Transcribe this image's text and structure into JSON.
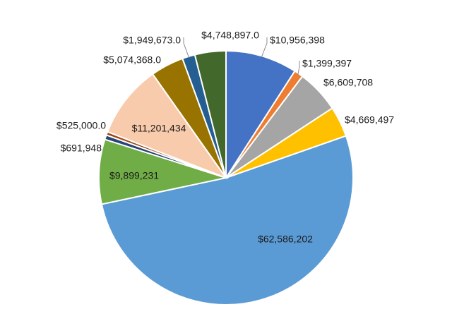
{
  "chart_data": {
    "type": "pie",
    "title": "",
    "slices": [
      {
        "label": "$10,956,398",
        "value": 10956398,
        "color": "#4472C4"
      },
      {
        "label": "$1,399,397",
        "value": 1399397,
        "color": "#ED7D31"
      },
      {
        "label": "$6,609,708",
        "value": 6609708,
        "color": "#A5A5A5"
      },
      {
        "label": "$4,669,497",
        "value": 4669497,
        "color": "#FFC000"
      },
      {
        "label": "$62,586,202",
        "value": 62586202,
        "color": "#5B9BD5"
      },
      {
        "label": "$9,899,231",
        "value": 9899231,
        "color": "#70AD47"
      },
      {
        "label": "$691,948",
        "value": 691948,
        "color": "#264478"
      },
      {
        "label": "$525,000.0",
        "value": 525000,
        "color": "#9E480E"
      },
      {
        "label": "$11,201,434",
        "value": 11201434,
        "color": "#F8CBAD"
      },
      {
        "label": "$5,074,368.0",
        "value": 5074368,
        "color": "#997300"
      },
      {
        "label": "$1,949,673.0",
        "value": 1949673,
        "color": "#255E91"
      },
      {
        "label": "$4,748,897.0",
        "value": 4748897,
        "color": "#43682B"
      }
    ]
  }
}
